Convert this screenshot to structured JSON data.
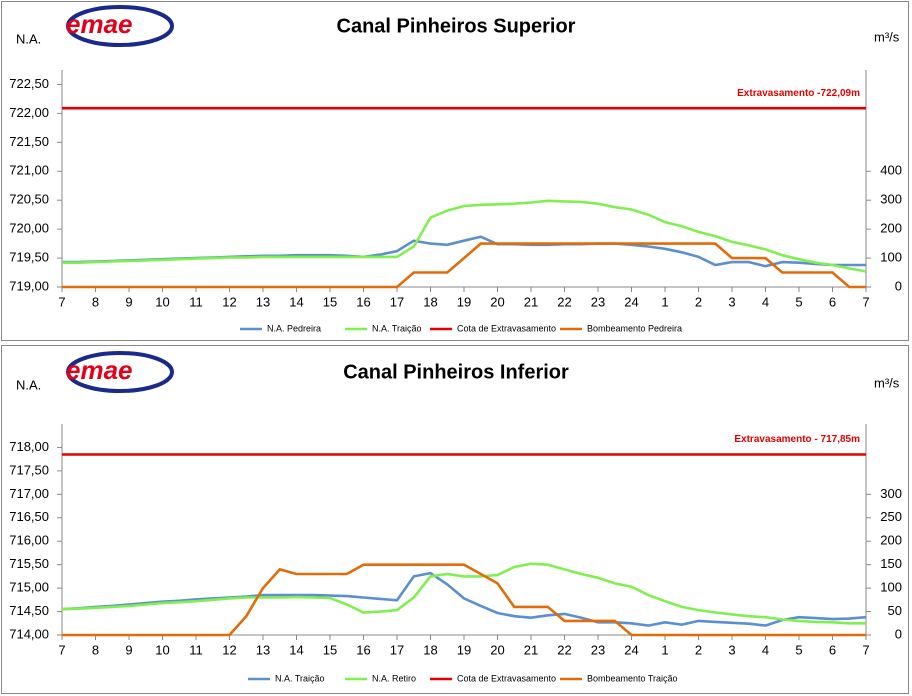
{
  "chart_data": [
    {
      "type": "line",
      "title": "Canal Pinheiros Superior",
      "logo": "emae",
      "y_label": "N.A.",
      "y2_label": "m³/s",
      "annotation": "Extravasamento -722,09m",
      "x": [
        0,
        0.5,
        1,
        1.5,
        2,
        2.5,
        3,
        3.5,
        4,
        4.5,
        5,
        5.5,
        6,
        6.5,
        7,
        7.5,
        8,
        8.5,
        9,
        9.5,
        10,
        10.5,
        11,
        11.5,
        12,
        12.5,
        13,
        13.5,
        14,
        14.5,
        15,
        15.5,
        16,
        16.5,
        17,
        17.5,
        18,
        18.5,
        19,
        19.5,
        20,
        20.5,
        21,
        21.5,
        22,
        22.5,
        23,
        23.5,
        24
      ],
      "xlim": [
        0,
        24
      ],
      "xticks": [
        {
          "value": 0,
          "label": "7"
        },
        {
          "value": 1,
          "label": "8"
        },
        {
          "value": 2,
          "label": "9"
        },
        {
          "value": 3,
          "label": "10"
        },
        {
          "value": 4,
          "label": "11"
        },
        {
          "value": 5,
          "label": "12"
        },
        {
          "value": 6,
          "label": "13"
        },
        {
          "value": 7,
          "label": "14"
        },
        {
          "value": 8,
          "label": "15"
        },
        {
          "value": 9,
          "label": "16"
        },
        {
          "value": 10,
          "label": "17"
        },
        {
          "value": 11,
          "label": "18"
        },
        {
          "value": 12,
          "label": "19"
        },
        {
          "value": 13,
          "label": "20"
        },
        {
          "value": 14,
          "label": "21"
        },
        {
          "value": 15,
          "label": "22"
        },
        {
          "value": 16,
          "label": "23"
        },
        {
          "value": 17,
          "label": "24"
        },
        {
          "value": 18,
          "label": "1"
        },
        {
          "value": 19,
          "label": "2"
        },
        {
          "value": 20,
          "label": "3"
        },
        {
          "value": 21,
          "label": "4"
        },
        {
          "value": 22,
          "label": "5"
        },
        {
          "value": 23,
          "label": "6"
        },
        {
          "value": 24,
          "label": "7"
        }
      ],
      "ylim": [
        719,
        722.75
      ],
      "yticks": [
        {
          "value": 719,
          "label": "719,00"
        },
        {
          "value": 719.5,
          "label": "719,50"
        },
        {
          "value": 720,
          "label": "720,00"
        },
        {
          "value": 720.5,
          "label": "720,50"
        },
        {
          "value": 721,
          "label": "721,00"
        },
        {
          "value": 721.5,
          "label": "721,50"
        },
        {
          "value": 722,
          "label": "722,00"
        },
        {
          "value": 722.5,
          "label": "722,50"
        }
      ],
      "y2lim": [
        0,
        750
      ],
      "y2ticks": [
        0,
        100,
        200,
        300,
        400
      ],
      "series": [
        {
          "name": "N.A. Pedreira",
          "color": "#5b8fd0",
          "values": [
            719.43,
            719.43,
            719.44,
            719.45,
            719.46,
            719.47,
            719.48,
            719.49,
            719.5,
            719.51,
            719.52,
            719.53,
            719.54,
            719.54,
            719.55,
            719.55,
            719.55,
            719.54,
            719.52,
            719.56,
            719.62,
            719.8,
            719.75,
            719.73,
            719.8,
            719.87,
            719.74,
            719.74,
            719.73,
            719.73,
            719.74,
            719.74,
            719.75,
            719.75,
            719.73,
            719.7,
            719.66,
            719.6,
            719.52,
            719.38,
            719.43,
            719.43,
            719.36,
            719.43,
            719.42,
            719.4,
            719.38,
            719.38,
            719.38
          ]
        },
        {
          "name": "N.A. Traição",
          "color": "#80f050",
          "values": [
            719.42,
            719.42,
            719.43,
            719.44,
            719.45,
            719.46,
            719.47,
            719.48,
            719.49,
            719.5,
            719.51,
            719.51,
            719.52,
            719.52,
            719.52,
            719.52,
            719.52,
            719.52,
            719.52,
            719.52,
            719.52,
            719.7,
            720.2,
            720.32,
            720.4,
            720.42,
            720.43,
            720.44,
            720.46,
            720.49,
            720.48,
            720.47,
            720.44,
            720.38,
            720.34,
            720.25,
            720.12,
            720.05,
            719.95,
            719.88,
            719.78,
            719.72,
            719.65,
            719.55,
            719.48,
            719.42,
            719.38,
            719.32,
            719.27
          ]
        },
        {
          "name": "Cota de Extravasamento",
          "color": "#e00000",
          "values": [
            722.09,
            722.09,
            722.09,
            722.09,
            722.09,
            722.09,
            722.09,
            722.09,
            722.09,
            722.09,
            722.09,
            722.09,
            722.09,
            722.09,
            722.09,
            722.09,
            722.09,
            722.09,
            722.09,
            722.09,
            722.09,
            722.09,
            722.09,
            722.09,
            722.09,
            722.09,
            722.09,
            722.09,
            722.09,
            722.09,
            722.09,
            722.09,
            722.09,
            722.09,
            722.09,
            722.09,
            722.09,
            722.09,
            722.09,
            722.09,
            722.09,
            722.09,
            722.09,
            722.09,
            722.09,
            722.09,
            722.09,
            722.09,
            722.09
          ]
        },
        {
          "name": "Bombeamento Pedreira",
          "color": "#e36c0a",
          "axis": "y2",
          "values": [
            0,
            0,
            0,
            0,
            0,
            0,
            0,
            0,
            0,
            0,
            0,
            0,
            0,
            0,
            0,
            0,
            0,
            0,
            0,
            0,
            0,
            50,
            50,
            50,
            100,
            150,
            150,
            150,
            150,
            150,
            150,
            150,
            150,
            150,
            150,
            150,
            150,
            150,
            150,
            150,
            100,
            100,
            100,
            50,
            50,
            50,
            50,
            0,
            0
          ]
        }
      ]
    },
    {
      "type": "line",
      "title": "Canal Pinheiros Inferior",
      "logo": "emae",
      "y_label": "N.A.",
      "y2_label": "m³/s",
      "annotation": "Extravasamento - 717,85m",
      "x": [
        0,
        0.5,
        1,
        1.5,
        2,
        2.5,
        3,
        3.5,
        4,
        4.5,
        5,
        5.5,
        6,
        6.5,
        7,
        7.5,
        8,
        8.5,
        9,
        9.5,
        10,
        10.5,
        11,
        11.5,
        12,
        12.5,
        13,
        13.5,
        14,
        14.5,
        15,
        15.5,
        16,
        16.5,
        17,
        17.5,
        18,
        18.5,
        19,
        19.5,
        20,
        20.5,
        21,
        21.5,
        22,
        22.5,
        23,
        23.5,
        24
      ],
      "xlim": [
        0,
        24
      ],
      "xticks": [
        {
          "value": 0,
          "label": "7"
        },
        {
          "value": 1,
          "label": "8"
        },
        {
          "value": 2,
          "label": "9"
        },
        {
          "value": 3,
          "label": "10"
        },
        {
          "value": 4,
          "label": "11"
        },
        {
          "value": 5,
          "label": "12"
        },
        {
          "value": 6,
          "label": "13"
        },
        {
          "value": 7,
          "label": "14"
        },
        {
          "value": 8,
          "label": "15"
        },
        {
          "value": 9,
          "label": "16"
        },
        {
          "value": 10,
          "label": "17"
        },
        {
          "value": 11,
          "label": "18"
        },
        {
          "value": 12,
          "label": "19"
        },
        {
          "value": 13,
          "label": "20"
        },
        {
          "value": 14,
          "label": "21"
        },
        {
          "value": 15,
          "label": "22"
        },
        {
          "value": 16,
          "label": "23"
        },
        {
          "value": 17,
          "label": "24"
        },
        {
          "value": 18,
          "label": "1"
        },
        {
          "value": 19,
          "label": "2"
        },
        {
          "value": 20,
          "label": "3"
        },
        {
          "value": 21,
          "label": "4"
        },
        {
          "value": 22,
          "label": "5"
        },
        {
          "value": 23,
          "label": "6"
        },
        {
          "value": 24,
          "label": "7"
        }
      ],
      "ylim": [
        714,
        718.5
      ],
      "yticks": [
        {
          "value": 714,
          "label": "714,00"
        },
        {
          "value": 714.5,
          "label": "714,50"
        },
        {
          "value": 715,
          "label": "715,00"
        },
        {
          "value": 715.5,
          "label": "715,50"
        },
        {
          "value": 716,
          "label": "716,00"
        },
        {
          "value": 716.5,
          "label": "716,50"
        },
        {
          "value": 717,
          "label": "717,00"
        },
        {
          "value": 717.5,
          "label": "717,50"
        },
        {
          "value": 718,
          "label": "718,00"
        }
      ],
      "y2lim": [
        0,
        450
      ],
      "y2ticks": [
        0,
        50,
        100,
        150,
        200,
        250,
        300
      ],
      "series": [
        {
          "name": "N.A. Traição",
          "color": "#5b8fd0",
          "values": [
            714.55,
            714.57,
            714.6,
            714.62,
            714.65,
            714.68,
            714.71,
            714.73,
            714.76,
            714.78,
            714.8,
            714.82,
            714.85,
            714.85,
            714.85,
            714.85,
            714.84,
            714.83,
            714.8,
            714.77,
            714.74,
            715.25,
            715.32,
            715.08,
            714.78,
            714.62,
            714.47,
            714.4,
            714.37,
            714.42,
            714.45,
            714.37,
            714.27,
            714.27,
            714.25,
            714.2,
            714.27,
            714.22,
            714.3,
            714.28,
            714.26,
            714.24,
            714.2,
            714.32,
            714.38,
            714.36,
            714.34,
            714.35,
            714.38
          ]
        },
        {
          "name": "N.A. Retiro",
          "color": "#80f050",
          "values": [
            714.55,
            714.56,
            714.58,
            714.6,
            714.62,
            714.65,
            714.68,
            714.7,
            714.72,
            714.75,
            714.78,
            714.8,
            714.8,
            714.8,
            714.81,
            714.8,
            714.79,
            714.65,
            714.48,
            714.5,
            714.53,
            714.8,
            715.25,
            715.3,
            715.25,
            715.25,
            715.28,
            715.45,
            715.52,
            715.5,
            715.4,
            715.3,
            715.22,
            715.1,
            715.03,
            714.85,
            714.72,
            714.6,
            714.53,
            714.48,
            714.44,
            714.4,
            714.38,
            714.33,
            714.3,
            714.28,
            714.27,
            714.25,
            714.25
          ]
        },
        {
          "name": "Cota de Extravasamento",
          "color": "#e00000",
          "values": [
            717.85,
            717.85,
            717.85,
            717.85,
            717.85,
            717.85,
            717.85,
            717.85,
            717.85,
            717.85,
            717.85,
            717.85,
            717.85,
            717.85,
            717.85,
            717.85,
            717.85,
            717.85,
            717.85,
            717.85,
            717.85,
            717.85,
            717.85,
            717.85,
            717.85,
            717.85,
            717.85,
            717.85,
            717.85,
            717.85,
            717.85,
            717.85,
            717.85,
            717.85,
            717.85,
            717.85,
            717.85,
            717.85,
            717.85,
            717.85,
            717.85,
            717.85,
            717.85,
            717.85,
            717.85,
            717.85,
            717.85,
            717.85,
            717.85
          ]
        },
        {
          "name": "Bombeamento Traição",
          "color": "#e36c0a",
          "axis": "y2",
          "values": [
            0,
            0,
            0,
            0,
            0,
            0,
            0,
            0,
            0,
            0,
            0,
            40,
            100,
            140,
            130,
            130,
            130,
            130,
            150,
            150,
            150,
            150,
            150,
            150,
            150,
            130,
            110,
            60,
            60,
            60,
            30,
            30,
            30,
            30,
            0,
            0,
            0,
            0,
            0,
            0,
            0,
            0,
            0,
            0,
            0,
            0,
            0,
            0,
            0
          ]
        }
      ]
    }
  ]
}
